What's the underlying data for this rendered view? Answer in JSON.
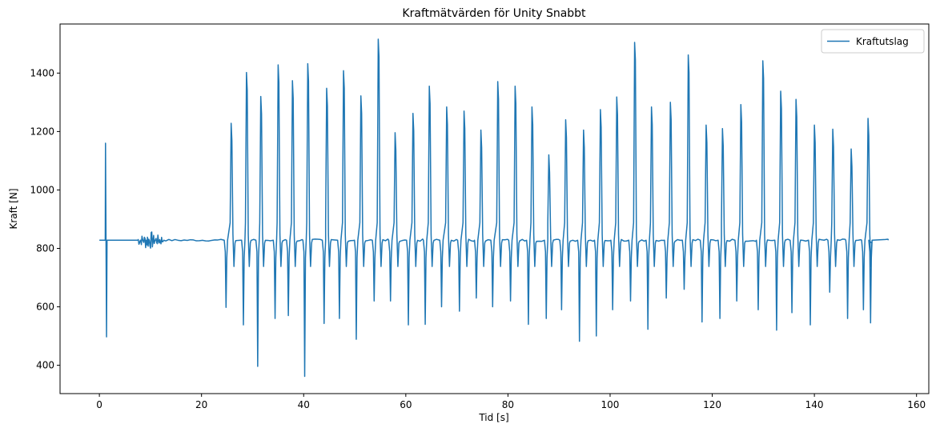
{
  "chart_data": {
    "type": "line",
    "title": "Kraftmätvärden för Unity Snabbt",
    "xlabel": "Tid [s]",
    "ylabel": "Kraft [N]",
    "xlim": [
      -7.7,
      162.4
    ],
    "ylim": [
      303,
      1568
    ],
    "xticks": [
      0,
      20,
      40,
      60,
      80,
      100,
      120,
      140,
      160
    ],
    "yticks": [
      400,
      600,
      800,
      1000,
      1200,
      1400
    ],
    "grid": false,
    "legend": {
      "position": "top-right"
    },
    "series": [
      {
        "name": "Kraftutslag",
        "color": "#1f77b4",
        "baseline": 828,
        "start_x": 0,
        "end_x": 154.5,
        "noise_segment": [
          7.5,
          12.5
        ],
        "early_spike": {
          "peak_x": 1.2,
          "peak_y": 1160,
          "trough_x": 1.4,
          "trough_y": 497
        },
        "cycles": [
          {
            "trough_x": 24.8,
            "trough_y": 598,
            "peak_x": 25.8,
            "peak_y": 1228
          },
          {
            "trough_x": 28.2,
            "trough_y": 538,
            "peak_x": 28.8,
            "peak_y": 1402
          },
          {
            "trough_x": 31.0,
            "trough_y": 396,
            "peak_x": 31.6,
            "peak_y": 1320
          },
          {
            "trough_x": 34.4,
            "trough_y": 560,
            "peak_x": 35.0,
            "peak_y": 1428
          },
          {
            "trough_x": 37.0,
            "trough_y": 570,
            "peak_x": 37.8,
            "peak_y": 1374
          },
          {
            "trough_x": 40.2,
            "trough_y": 362,
            "peak_x": 40.8,
            "peak_y": 1432
          },
          {
            "trough_x": 44.0,
            "trough_y": 543,
            "peak_x": 44.5,
            "peak_y": 1348
          },
          {
            "trough_x": 47.0,
            "trough_y": 560,
            "peak_x": 47.8,
            "peak_y": 1408
          },
          {
            "trough_x": 50.3,
            "trough_y": 489,
            "peak_x": 51.2,
            "peak_y": 1322
          },
          {
            "trough_x": 53.8,
            "trough_y": 620,
            "peak_x": 54.6,
            "peak_y": 1516
          },
          {
            "trough_x": 57.0,
            "trough_y": 620,
            "peak_x": 57.9,
            "peak_y": 1196
          },
          {
            "trough_x": 60.5,
            "trough_y": 538,
            "peak_x": 61.4,
            "peak_y": 1262
          },
          {
            "trough_x": 63.8,
            "trough_y": 540,
            "peak_x": 64.6,
            "peak_y": 1355
          },
          {
            "trough_x": 67.0,
            "trough_y": 600,
            "peak_x": 68.0,
            "peak_y": 1284
          },
          {
            "trough_x": 70.5,
            "trough_y": 585,
            "peak_x": 71.4,
            "peak_y": 1270
          },
          {
            "trough_x": 73.8,
            "trough_y": 630,
            "peak_x": 74.7,
            "peak_y": 1205
          },
          {
            "trough_x": 77.0,
            "trough_y": 600,
            "peak_x": 78.0,
            "peak_y": 1371
          },
          {
            "trough_x": 80.5,
            "trough_y": 620,
            "peak_x": 81.4,
            "peak_y": 1355
          },
          {
            "trough_x": 84.0,
            "trough_y": 540,
            "peak_x": 84.7,
            "peak_y": 1284
          },
          {
            "trough_x": 87.5,
            "trough_y": 560,
            "peak_x": 88.0,
            "peak_y": 1120
          },
          {
            "trough_x": 90.5,
            "trough_y": 590,
            "peak_x": 91.3,
            "peak_y": 1240
          },
          {
            "trough_x": 94.0,
            "trough_y": 482,
            "peak_x": 94.8,
            "peak_y": 1205
          },
          {
            "trough_x": 97.3,
            "trough_y": 500,
            "peak_x": 98.1,
            "peak_y": 1275
          },
          {
            "trough_x": 100.5,
            "trough_y": 590,
            "peak_x": 101.3,
            "peak_y": 1318
          },
          {
            "trough_x": 104.0,
            "trough_y": 620,
            "peak_x": 104.8,
            "peak_y": 1505
          },
          {
            "trough_x": 107.4,
            "trough_y": 523,
            "peak_x": 108.1,
            "peak_y": 1284
          },
          {
            "trough_x": 111.0,
            "trough_y": 630,
            "peak_x": 111.8,
            "peak_y": 1300
          },
          {
            "trough_x": 114.5,
            "trough_y": 660,
            "peak_x": 115.3,
            "peak_y": 1462
          },
          {
            "trough_x": 118.0,
            "trough_y": 548,
            "peak_x": 118.8,
            "peak_y": 1222
          },
          {
            "trough_x": 121.5,
            "trough_y": 560,
            "peak_x": 122.0,
            "peak_y": 1210
          },
          {
            "trough_x": 124.8,
            "trough_y": 620,
            "peak_x": 125.6,
            "peak_y": 1292
          },
          {
            "trough_x": 129.0,
            "trough_y": 590,
            "peak_x": 129.9,
            "peak_y": 1442
          },
          {
            "trough_x": 132.6,
            "trough_y": 520,
            "peak_x": 133.4,
            "peak_y": 1338
          },
          {
            "trough_x": 135.6,
            "trough_y": 580,
            "peak_x": 136.4,
            "peak_y": 1310
          },
          {
            "trough_x": 139.2,
            "trough_y": 538,
            "peak_x": 140.0,
            "peak_y": 1222
          },
          {
            "trough_x": 143.0,
            "trough_y": 650,
            "peak_x": 143.6,
            "peak_y": 1208
          },
          {
            "trough_x": 146.5,
            "trough_y": 560,
            "peak_x": 147.2,
            "peak_y": 1140
          },
          {
            "trough_x": 149.6,
            "trough_y": 590,
            "peak_x": 150.5,
            "peak_y": 1245
          },
          {
            "trough_x": 151.0,
            "trough_y": 545,
            "peak_x": 153.0,
            "peak_y": 828
          }
        ]
      }
    ]
  }
}
